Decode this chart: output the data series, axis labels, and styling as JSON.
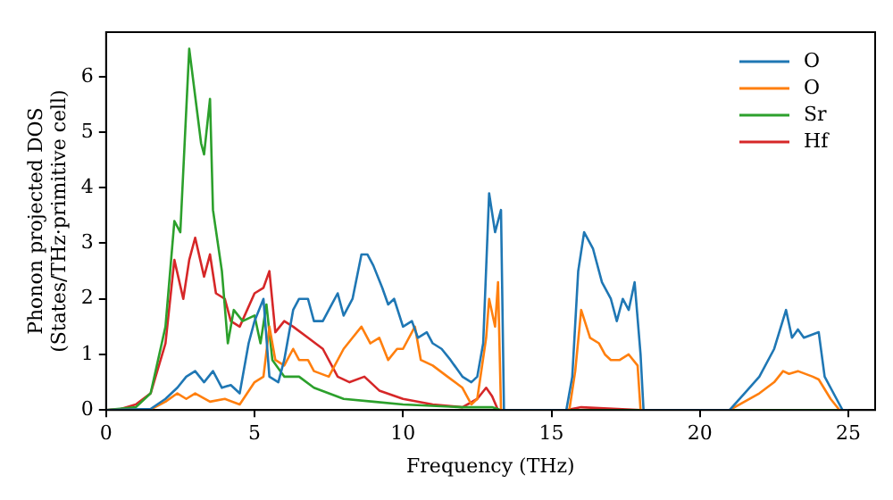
{
  "chart_data": {
    "type": "line",
    "xlabel": "Frequency (THz)",
    "ylabel": "Phonon projected DOS\n(States/THz·primitive cell)",
    "xlim": [
      0,
      25.9
    ],
    "ylim": [
      0,
      6.8
    ],
    "xticks": [
      0,
      5,
      10,
      15,
      20,
      25
    ],
    "yticks": [
      0,
      1,
      2,
      3,
      4,
      5,
      6
    ],
    "grid": false,
    "legend": "top right",
    "marker": "none",
    "line_style": "solid",
    "series": [
      {
        "name": "O",
        "color": "#1f77b4",
        "x": [
          0,
          1.5,
          2,
          2.4,
          2.7,
          3,
          3.3,
          3.6,
          3.9,
          4.2,
          4.5,
          4.8,
          5,
          5.3,
          5.5,
          5.8,
          6,
          6.3,
          6.5,
          6.8,
          7,
          7.3,
          7.6,
          7.8,
          8,
          8.3,
          8.6,
          8.8,
          9,
          9.3,
          9.5,
          9.7,
          10,
          10.3,
          10.5,
          10.8,
          11,
          11.3,
          11.6,
          12,
          12.3,
          12.5,
          12.7,
          12.9,
          13.1,
          13.3,
          13.4,
          15.5,
          15.7,
          15.9,
          16.1,
          16.4,
          16.7,
          17,
          17.2,
          17.4,
          17.6,
          17.8,
          18,
          18.1,
          21,
          21.5,
          22,
          22.5,
          22.9,
          23.1,
          23.3,
          23.5,
          24,
          24.2,
          24.6,
          24.8,
          25
        ],
        "values": [
          0,
          0.02,
          0.2,
          0.4,
          0.6,
          0.7,
          0.5,
          0.7,
          0.4,
          0.45,
          0.3,
          1.2,
          1.6,
          2.0,
          0.6,
          0.5,
          0.9,
          1.8,
          2.0,
          2.0,
          1.6,
          1.6,
          1.9,
          2.1,
          1.7,
          2.0,
          2.8,
          2.8,
          2.6,
          2.2,
          1.9,
          2.0,
          1.5,
          1.6,
          1.3,
          1.4,
          1.2,
          1.1,
          0.9,
          0.6,
          0.5,
          0.6,
          1.2,
          3.9,
          3.2,
          3.6,
          0,
          0,
          0.6,
          2.5,
          3.2,
          2.9,
          2.3,
          2.0,
          1.6,
          2.0,
          1.8,
          2.3,
          1.0,
          0,
          0,
          0.3,
          0.6,
          1.1,
          1.8,
          1.3,
          1.45,
          1.3,
          1.4,
          0.6,
          0.2,
          0,
          0
        ]
      },
      {
        "name": "O",
        "color": "#ff7f0e",
        "x": [
          0,
          1.5,
          2,
          2.4,
          2.7,
          3,
          3.5,
          4,
          4.5,
          5,
          5.3,
          5.5,
          5.7,
          6,
          6.3,
          6.5,
          6.8,
          7,
          7.5,
          8,
          8.3,
          8.6,
          8.9,
          9.2,
          9.5,
          9.8,
          10,
          10.4,
          10.6,
          11,
          11.5,
          12,
          12.3,
          12.5,
          12.8,
          12.9,
          13.1,
          13.2,
          13.3,
          15.6,
          15.8,
          16,
          16.3,
          16.6,
          16.8,
          17,
          17.3,
          17.6,
          17.9,
          18,
          21,
          22,
          22.5,
          22.8,
          23,
          23.3,
          23.8,
          24,
          24.4,
          24.7,
          25
        ],
        "values": [
          0,
          0.01,
          0.15,
          0.3,
          0.2,
          0.3,
          0.15,
          0.2,
          0.1,
          0.5,
          0.6,
          1.5,
          0.9,
          0.8,
          1.1,
          0.9,
          0.9,
          0.7,
          0.6,
          1.1,
          1.3,
          1.5,
          1.2,
          1.3,
          0.9,
          1.1,
          1.1,
          1.5,
          0.9,
          0.8,
          0.6,
          0.4,
          0.1,
          0.2,
          1.3,
          2.0,
          1.5,
          2.3,
          0,
          0,
          0.7,
          1.8,
          1.3,
          1.2,
          1.0,
          0.9,
          0.9,
          1.0,
          0.8,
          0,
          0,
          0.3,
          0.5,
          0.7,
          0.65,
          0.7,
          0.6,
          0.55,
          0.2,
          0,
          0
        ]
      },
      {
        "name": "Sr",
        "color": "#2ca02c",
        "x": [
          0,
          1,
          1.5,
          2,
          2.3,
          2.5,
          2.8,
          3.2,
          3.3,
          3.5,
          3.6,
          3.9,
          4.1,
          4.3,
          4.6,
          5,
          5.2,
          5.4,
          5.6,
          6,
          6.5,
          7,
          8,
          9,
          10,
          12,
          13,
          13.3,
          25
        ],
        "values": [
          0,
          0.05,
          0.3,
          1.5,
          3.4,
          3.2,
          6.5,
          4.8,
          4.6,
          5.6,
          3.6,
          2.5,
          1.2,
          1.8,
          1.6,
          1.7,
          1.2,
          1.9,
          0.9,
          0.6,
          0.6,
          0.4,
          0.2,
          0.15,
          0.1,
          0.05,
          0.05,
          0,
          0
        ]
      },
      {
        "name": "Hf",
        "color": "#d62728",
        "x": [
          0,
          0.5,
          1,
          1.5,
          2,
          2.3,
          2.6,
          2.8,
          3,
          3.3,
          3.5,
          3.7,
          4,
          4.2,
          4.5,
          5,
          5.3,
          5.5,
          5.7,
          6,
          6.3,
          6.8,
          7.3,
          7.8,
          8.2,
          8.7,
          9.2,
          10,
          11,
          12,
          12.5,
          12.8,
          13,
          13.2,
          15.5,
          16,
          18,
          25
        ],
        "values": [
          0,
          0.02,
          0.1,
          0.3,
          1.2,
          2.7,
          2.0,
          2.7,
          3.1,
          2.4,
          2.8,
          2.1,
          2.0,
          1.6,
          1.5,
          2.1,
          2.2,
          2.5,
          1.4,
          1.6,
          1.5,
          1.3,
          1.1,
          0.6,
          0.5,
          0.6,
          0.35,
          0.2,
          0.1,
          0.05,
          0.2,
          0.4,
          0.25,
          0,
          0,
          0.05,
          0,
          0
        ]
      }
    ]
  }
}
